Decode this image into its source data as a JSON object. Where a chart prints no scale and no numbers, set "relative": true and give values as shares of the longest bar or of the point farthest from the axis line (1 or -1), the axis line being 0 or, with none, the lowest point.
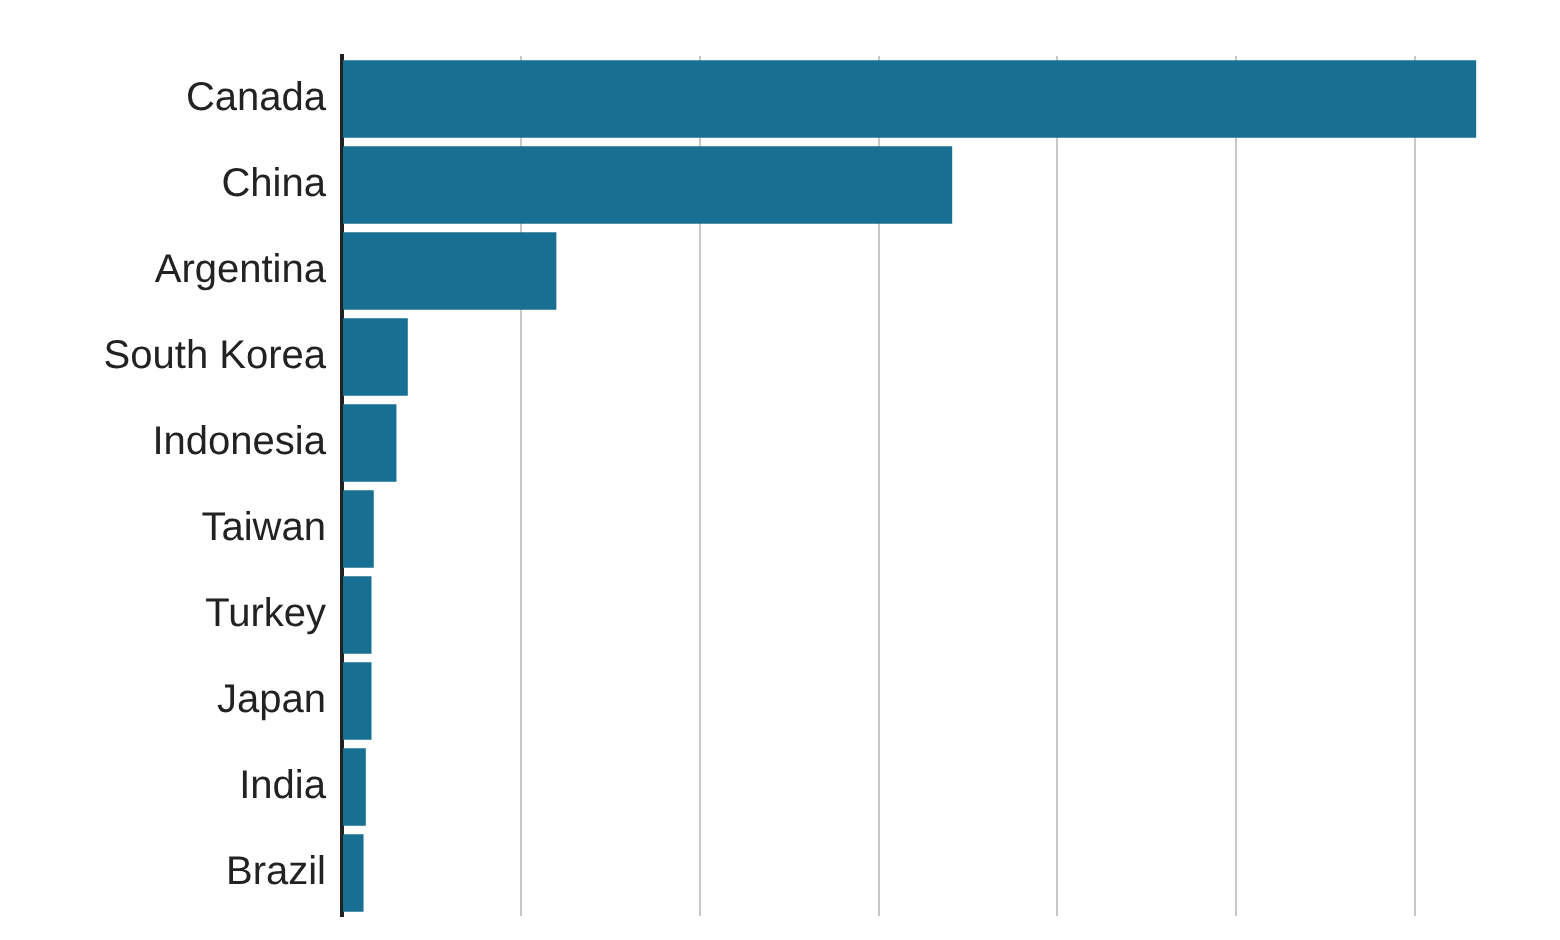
{
  "chart_data": {
    "type": "bar",
    "orientation": "horizontal",
    "relative": true,
    "grid": "x",
    "categories": [
      "Canada",
      "China",
      "Argentina",
      "South Korea",
      "Indonesia",
      "Taiwan",
      "Turkey",
      "Japan",
      "India",
      "Brazil"
    ],
    "values": [
      1,
      0.538,
      0.189,
      0.058,
      0.048,
      0.028,
      0.026,
      0.026,
      0.021,
      0.019
    ],
    "color": "#176f91"
  }
}
